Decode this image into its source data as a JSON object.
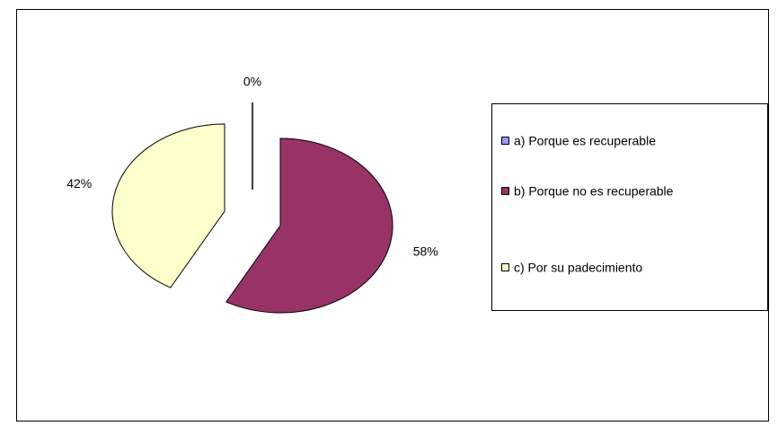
{
  "chart_data": {
    "type": "pie",
    "categories": [
      "a) Porque es recuperable",
      "b) Porque no es recuperable",
      "c) Por su padecimiento"
    ],
    "values": [
      0,
      58,
      42
    ],
    "value_labels": [
      "0%",
      "58%",
      "42%"
    ],
    "colors": [
      "#9999ff",
      "#993366",
      "#ffffcc"
    ],
    "exploded": true,
    "legend": "right"
  }
}
